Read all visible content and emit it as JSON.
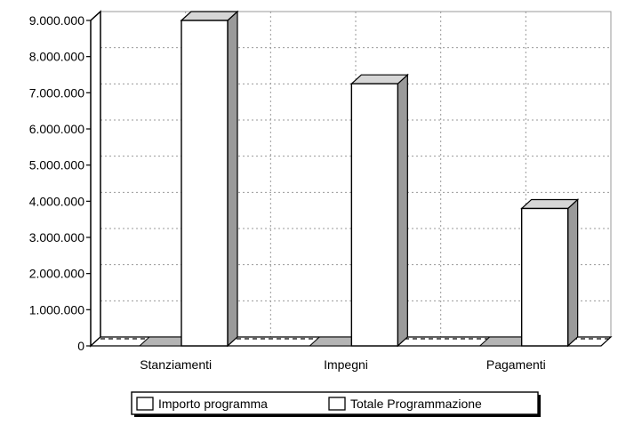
{
  "chart_data": {
    "type": "bar",
    "three_d": true,
    "grid": true,
    "legend_position": "bottom",
    "categories": [
      "Stanziamenti",
      "Impegni",
      "Pagamenti"
    ],
    "series": [
      {
        "name": "Importo programma",
        "values": [
          0,
          0,
          0
        ]
      },
      {
        "name": "Totale Programmazione",
        "values": [
          9000000,
          7250000,
          3800000
        ]
      }
    ],
    "yticks": [
      "0",
      "1.000.000",
      "2.000.000",
      "3.000.000",
      "4.000.000",
      "5.000.000",
      "6.000.000",
      "7.000.000",
      "8.000.000",
      "9.000.000"
    ],
    "ylim": [
      0,
      9000000
    ],
    "colors": {
      "bar_front": "#ffffff",
      "bar_side": "#9a9a9a",
      "bar_top": "#d6d6d6",
      "small_bar": "#b4b4b4",
      "grid": "#9a9a9a",
      "axis": "#000000"
    }
  }
}
